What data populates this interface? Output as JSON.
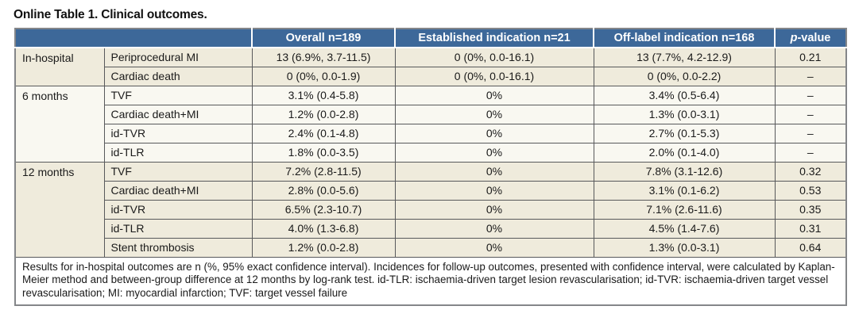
{
  "title": "Online Table 1. Clinical outcomes.",
  "colors": {
    "header_bg": "#3d6899",
    "header_text": "#ffffff",
    "row_beige": "#efebdc",
    "row_light": "#f9f8f1",
    "grid_border": "#58595b"
  },
  "table": {
    "header": {
      "blank": "",
      "overall": "Overall n=189",
      "established": "Established indication n=21",
      "offlabel": "Off-label indication n=168",
      "p_italic": "p",
      "p_rest": "-value"
    },
    "groups": [
      {
        "period": "In-hospital",
        "shade": "beige",
        "rows": [
          {
            "outcome": "Periprocedural MI",
            "overall": "13 (6.9%, 3.7-11.5)",
            "established": "0 (0%, 0.0-16.1)",
            "offlabel": "13 (7.7%, 4.2-12.9)",
            "p": "0.21"
          },
          {
            "outcome": "Cardiac death",
            "overall": "0 (0%, 0.0-1.9)",
            "established": "0 (0%, 0.0-16.1)",
            "offlabel": "0 (0%, 0.0-2.2)",
            "p": "–"
          }
        ]
      },
      {
        "period": "6 months",
        "shade": "light",
        "rows": [
          {
            "outcome": "TVF",
            "overall": "3.1% (0.4-5.8)",
            "established": "0%",
            "offlabel": "3.4% (0.5-6.4)",
            "p": "–"
          },
          {
            "outcome": "Cardiac death+MI",
            "overall": "1.2% (0.0-2.8)",
            "established": "0%",
            "offlabel": "1.3% (0.0-3.1)",
            "p": "–"
          },
          {
            "outcome": "id-TVR",
            "overall": "2.4% (0.1-4.8)",
            "established": "0%",
            "offlabel": "2.7% (0.1-5.3)",
            "p": "–"
          },
          {
            "outcome": "id-TLR",
            "overall": "1.8% (0.0-3.5)",
            "established": "0%",
            "offlabel": "2.0% (0.1-4.0)",
            "p": "–"
          }
        ]
      },
      {
        "period": "12 months",
        "shade": "beige",
        "rows": [
          {
            "outcome": "TVF",
            "overall": "7.2% (2.8-11.5)",
            "established": "0%",
            "offlabel": "7.8% (3.1-12.6)",
            "p": "0.32"
          },
          {
            "outcome": "Cardiac death+MI",
            "overall": "2.8% (0.0-5.6)",
            "established": "0%",
            "offlabel": "3.1% (0.1-6.2)",
            "p": "0.53"
          },
          {
            "outcome": "id-TVR",
            "overall": "6.5% (2.3-10.7)",
            "established": "0%",
            "offlabel": "7.1% (2.6-11.6)",
            "p": "0.35"
          },
          {
            "outcome": "id-TLR",
            "overall": "4.0% (1.3-6.8)",
            "established": "0%",
            "offlabel": "4.5% (1.4-7.6)",
            "p": "0.31"
          },
          {
            "outcome": "Stent thrombosis",
            "overall": "1.2% (0.0-2.8)",
            "established": "0%",
            "offlabel": "1.3% (0.0-3.1)",
            "p": "0.64"
          }
        ]
      }
    ],
    "footnote": "Results for in-hospital outcomes are n (%, 95% exact confidence interval). Incidences for follow-up outcomes, presented with confidence interval, were calculated by Kaplan-Meier method and between-group difference at 12 months by log-rank test. id-TLR: ischaemia-driven target lesion revascularisation; id-TVR: ischaemia-driven target vessel revascularisation; MI: myocardial infarction; TVF: target vessel failure"
  }
}
